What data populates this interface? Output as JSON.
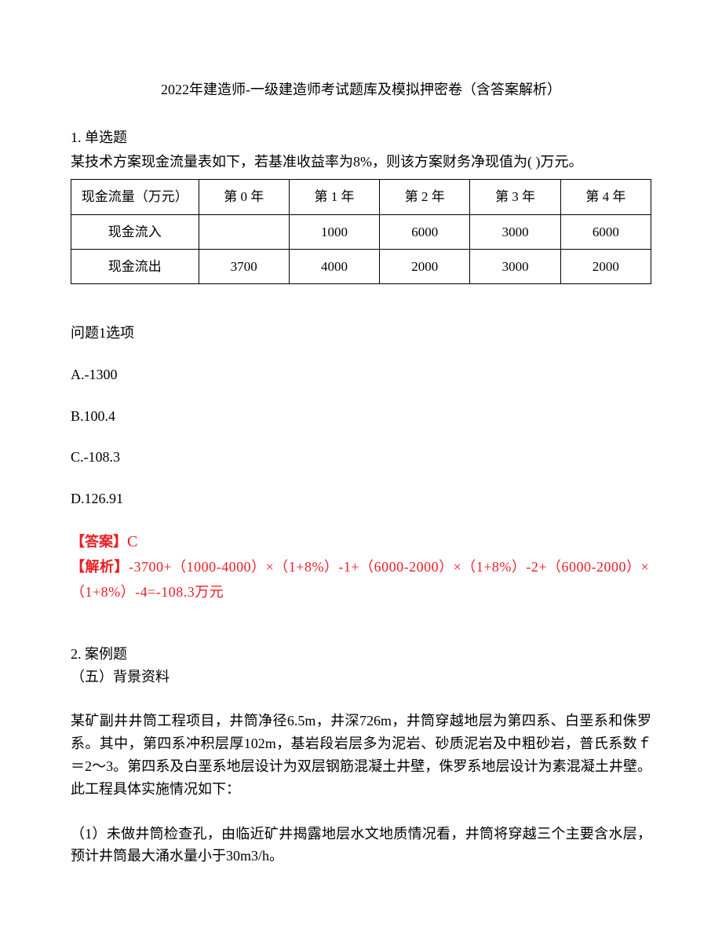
{
  "title": "2022年建造师-一级建造师考试题库及模拟押密卷（含答案解析）",
  "q1": {
    "header": "1. 单选题",
    "text": "某技术方案现金流量表如下，若基准收益率为8%，则该方案财务净现值为(    )万元。",
    "table": {
      "headers": [
        "现金流量（万元）",
        "第 0 年",
        "第 1 年",
        "第 2 年",
        "第 3 年",
        "第 4 年"
      ],
      "rows": [
        [
          "现金流入",
          "",
          "1000",
          "6000",
          "3000",
          "6000"
        ],
        [
          "现金流出",
          "3700",
          "4000",
          "2000",
          "3000",
          "2000"
        ]
      ]
    },
    "options_label": "问题1选项",
    "options": {
      "a": "A.-1300",
      "b": "B.100.4",
      "c": "C.-108.3",
      "d": "D.126.91"
    },
    "answer_label": "【答案】",
    "answer_value": "C",
    "analysis_label": "【解析】",
    "analysis_text": "-3700+（1000-4000）×（1+8%）-1+（6000-2000）×（1+8%）-2+（6000-2000）×（1+8%）-4=-108.3万元"
  },
  "q2": {
    "header": "2. 案例题",
    "subheader": "（五）背景资料",
    "para1": "某矿副井井筒工程项目，井筒净径6.5m，井深726m，井筒穿越地层为第四系、白垩系和侏罗系。其中，第四系冲积层厚102m，基岩段岩层多为泥岩、砂质泥岩及中粗砂岩，普氏系数ｆ＝2～3。第四系及白垩系地层设计为双层钢筋混凝土井壁，侏罗系地层设计为素混凝土井壁。此工程具体实施情况如下：",
    "para2": "（1）未做井筒检查孔，由临近矿井揭露地层水文地质情况看，井筒将穿越三个主要含水层，预计井筒最大涌水量小于30m3/h。"
  },
  "colors": {
    "text": "#000000",
    "red": "#ed1c24",
    "background": "#ffffff",
    "border": "#000000"
  }
}
